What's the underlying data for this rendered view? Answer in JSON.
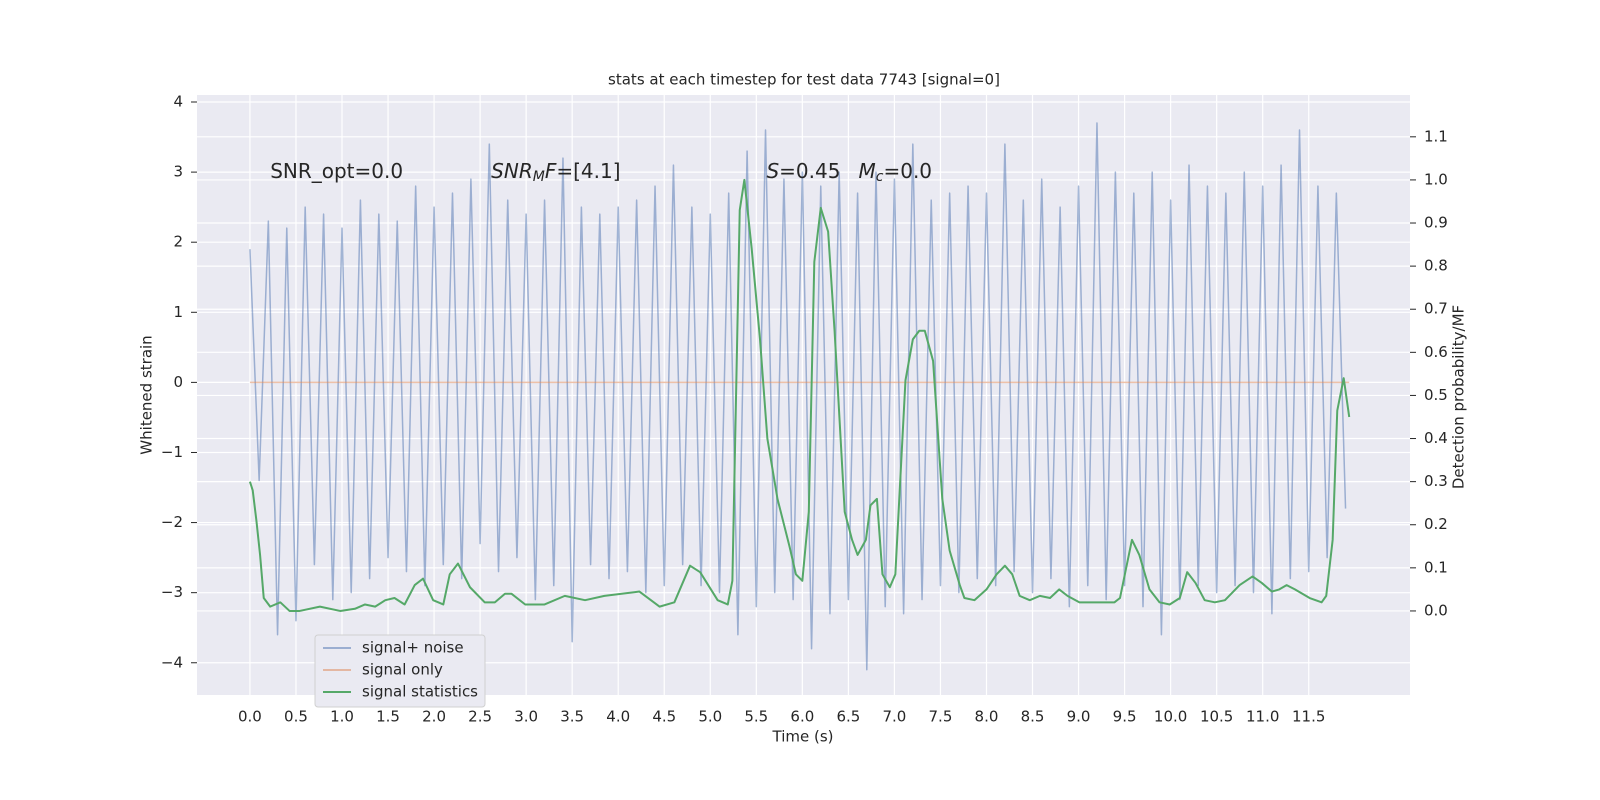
{
  "chart_data": {
    "type": "line",
    "title": "stats at each timestep for test data 7743 [signal=0]",
    "x_label": "Time (s)",
    "y_label": "Whitened strain",
    "y2_label": "Detection probability/MF",
    "grid": true,
    "legend": "lower left",
    "xlim": [
      -0.575,
      12.6
    ],
    "ylim": [
      -4.46,
      4.1
    ],
    "y2lim": [
      -0.195,
      1.197
    ],
    "xticks": [
      {
        "value": 0,
        "label": "0.0"
      },
      {
        "value": 0.5,
        "label": "0.5"
      },
      {
        "value": 1,
        "label": "1.0"
      },
      {
        "value": 1.5,
        "label": "1.5"
      },
      {
        "value": 2,
        "label": "2.0"
      },
      {
        "value": 2.5,
        "label": "2.5"
      },
      {
        "value": 3,
        "label": "3.0"
      },
      {
        "value": 3.5,
        "label": "3.5"
      },
      {
        "value": 4,
        "label": "4.0"
      },
      {
        "value": 4.5,
        "label": "4.5"
      },
      {
        "value": 5,
        "label": "5.0"
      },
      {
        "value": 5.5,
        "label": "5.5"
      },
      {
        "value": 6,
        "label": "6.0"
      },
      {
        "value": 6.5,
        "label": "6.5"
      },
      {
        "value": 7,
        "label": "7.0"
      },
      {
        "value": 7.5,
        "label": "7.5"
      },
      {
        "value": 8,
        "label": "8.0"
      },
      {
        "value": 8.5,
        "label": "8.5"
      },
      {
        "value": 9,
        "label": "9.0"
      },
      {
        "value": 9.5,
        "label": "9.5"
      },
      {
        "value": 10,
        "label": "10.0"
      },
      {
        "value": 10.5,
        "label": "10.5"
      },
      {
        "value": 11,
        "label": "11.0"
      },
      {
        "value": 11.5,
        "label": "11.5"
      }
    ],
    "yticks": [
      {
        "value": -4,
        "label": "−4"
      },
      {
        "value": -3,
        "label": "−3"
      },
      {
        "value": -2,
        "label": "−2"
      },
      {
        "value": -1,
        "label": "−1"
      },
      0,
      1,
      2,
      3,
      4
    ],
    "y2ticks": [
      {
        "value": 0,
        "label": "0.0"
      },
      {
        "value": 0.1,
        "label": "0.1"
      },
      {
        "value": 0.2,
        "label": "0.2"
      },
      {
        "value": 0.3,
        "label": "0.3"
      },
      {
        "value": 0.4,
        "label": "0.4"
      },
      {
        "value": 0.5,
        "label": "0.5"
      },
      {
        "value": 0.6,
        "label": "0.6"
      },
      {
        "value": 0.7,
        "label": "0.7"
      },
      {
        "value": 0.8,
        "label": "0.8"
      },
      {
        "value": 0.9,
        "label": "0.9"
      },
      {
        "value": 1,
        "label": "1.0"
      },
      {
        "value": 1.1,
        "label": "1.1"
      }
    ],
    "annotations": [
      {
        "x": 0.22,
        "y": 3,
        "parts": [
          {
            "t": "SNR_opt=0.0"
          }
        ]
      },
      {
        "x": 2.62,
        "y": 3,
        "parts": [
          {
            "t": "SNR",
            "italic": true
          },
          {
            "t": "M",
            "italic": true,
            "sub": true
          },
          {
            "t": "F",
            "italic": true
          },
          {
            "t": "=[4.1]"
          }
        ]
      },
      {
        "x": 5.61,
        "y": 3,
        "parts": [
          {
            "t": "S",
            "italic": true
          },
          {
            "t": "=0.45"
          }
        ]
      },
      {
        "x": 6.61,
        "y": 3,
        "parts": [
          {
            "t": "M",
            "italic": true
          },
          {
            "t": "c",
            "italic": true,
            "sub": true
          },
          {
            "t": "=0.0"
          }
        ]
      }
    ],
    "series": [
      {
        "name": "signal+ noise",
        "color": "#4c72b0",
        "opacity": 0.5,
        "x": [
          0.0,
          0.1,
          0.2,
          0.3,
          0.4,
          0.5,
          0.6,
          0.7,
          0.8,
          0.9,
          1.0,
          1.1,
          1.2,
          1.3,
          1.4,
          1.5,
          1.6,
          1.7,
          1.8,
          1.9,
          2.0,
          2.1,
          2.2,
          2.3,
          2.4,
          2.5,
          2.6,
          2.7,
          2.8,
          2.9,
          3.0,
          3.1,
          3.2,
          3.3,
          3.4,
          3.5,
          3.6,
          3.7,
          3.8,
          3.9,
          4.0,
          4.1,
          4.2,
          4.3,
          4.4,
          4.5,
          4.6,
          4.7,
          4.8,
          4.9,
          5.0,
          5.1,
          5.2,
          5.3,
          5.4,
          5.5,
          5.6,
          5.7,
          5.8,
          5.9,
          6.0,
          6.1,
          6.2,
          6.3,
          6.4,
          6.5,
          6.6,
          6.7,
          6.8,
          6.9,
          7.0,
          7.1,
          7.2,
          7.3,
          7.4,
          7.5,
          7.6,
          7.7,
          7.8,
          7.9,
          8.0,
          8.1,
          8.2,
          8.3,
          8.4,
          8.5,
          8.6,
          8.7,
          8.8,
          8.9,
          9.0,
          9.1,
          9.2,
          9.3,
          9.4,
          9.5,
          9.6,
          9.7,
          9.8,
          9.9,
          10.0,
          10.1,
          10.2,
          10.3,
          10.4,
          10.5,
          10.6,
          10.7,
          10.8,
          10.9,
          11.0,
          11.1,
          11.2,
          11.3,
          11.4,
          11.5,
          11.6,
          11.7,
          11.8,
          11.9
        ],
        "values": [
          1.9,
          -1.4,
          2.3,
          -3.6,
          2.2,
          -3.4,
          2.5,
          -2.6,
          2.4,
          -3.1,
          2.2,
          -3.0,
          2.6,
          -2.8,
          2.4,
          -2.5,
          2.3,
          -2.7,
          2.8,
          -2.9,
          2.5,
          -2.6,
          2.7,
          -2.8,
          2.9,
          -2.3,
          3.4,
          -2.7,
          2.6,
          -2.5,
          2.4,
          -3.1,
          2.6,
          -2.9,
          3.2,
          -3.7,
          2.5,
          -2.6,
          2.4,
          -2.8,
          2.5,
          -2.7,
          2.6,
          -3.0,
          2.8,
          -2.9,
          3.1,
          -2.6,
          2.5,
          -2.9,
          2.4,
          -3.0,
          2.7,
          -3.6,
          3.3,
          -3.2,
          3.6,
          -3.0,
          2.9,
          -3.1,
          3.0,
          -3.8,
          2.8,
          -3.3,
          3.0,
          -3.1,
          2.7,
          -4.1,
          3.0,
          -3.2,
          2.9,
          -3.3,
          3.4,
          -3.1,
          2.6,
          -2.9,
          2.7,
          -3.0,
          2.8,
          -2.8,
          2.7,
          -2.9,
          3.4,
          -2.7,
          2.6,
          -3.0,
          2.9,
          -2.8,
          2.5,
          -3.2,
          2.8,
          -2.9,
          3.7,
          -3.1,
          3.0,
          -2.9,
          2.7,
          -3.2,
          3.0,
          -3.6,
          2.6,
          -3.1,
          3.1,
          -2.9,
          2.8,
          -3.0,
          2.7,
          -2.9,
          3.0,
          -3.0,
          2.8,
          -3.3,
          3.1,
          -2.8,
          3.6,
          -2.7,
          2.8,
          -2.5,
          2.7,
          -1.8
        ]
      },
      {
        "name": "signal only",
        "color": "#dd8452",
        "opacity": 0.5,
        "x": [
          0.0,
          11.94
        ],
        "values": [
          0,
          0
        ]
      },
      {
        "name": "signal statistics",
        "color": "#55a868",
        "opacity": 1,
        "axis": "y2",
        "x": [
          0,
          0.03,
          0.07,
          0.11,
          0.15,
          0.22,
          0.33,
          0.43,
          0.54,
          0.76,
          0.98,
          1.14,
          1.25,
          1.36,
          1.47,
          1.57,
          1.68,
          1.79,
          1.88,
          1.99,
          2.1,
          2.17,
          2.26,
          2.39,
          2.55,
          2.66,
          2.77,
          2.84,
          2.99,
          3.2,
          3.42,
          3.64,
          3.85,
          4.23,
          4.45,
          4.61,
          4.78,
          4.89,
          5.08,
          5.19,
          5.24,
          5.32,
          5.37,
          5.45,
          5.54,
          5.62,
          5.73,
          5.86,
          5.93,
          6.0,
          6.07,
          6.13,
          6.2,
          6.28,
          6.35,
          6.46,
          6.54,
          6.6,
          6.69,
          6.74,
          6.81,
          6.87,
          6.95,
          7.01,
          7.12,
          7.2,
          7.27,
          7.33,
          7.42,
          7.52,
          7.6,
          7.71,
          7.76,
          7.87,
          8.0,
          8.11,
          8.2,
          8.28,
          8.36,
          8.47,
          8.58,
          8.69,
          8.79,
          8.88,
          9.01,
          9.23,
          9.39,
          9.45,
          9.58,
          9.66,
          9.77,
          9.88,
          9.99,
          10.1,
          10.18,
          10.27,
          10.37,
          10.48,
          10.59,
          10.75,
          10.89,
          10.99,
          11.1,
          11.18,
          11.26,
          11.35,
          11.51,
          11.64,
          11.69,
          11.76,
          11.81,
          11.88,
          11.94
        ],
        "values": [
          0.3,
          0.28,
          0.21,
          0.13,
          0.03,
          0.01,
          0.02,
          0.0,
          0.0,
          0.01,
          0.0,
          0.005,
          0.015,
          0.01,
          0.025,
          0.03,
          0.015,
          0.06,
          0.075,
          0.025,
          0.015,
          0.085,
          0.11,
          0.055,
          0.02,
          0.02,
          0.04,
          0.04,
          0.015,
          0.015,
          0.035,
          0.025,
          0.035,
          0.045,
          0.01,
          0.02,
          0.105,
          0.09,
          0.025,
          0.015,
          0.07,
          0.93,
          1.0,
          0.84,
          0.63,
          0.4,
          0.26,
          0.15,
          0.085,
          0.07,
          0.23,
          0.81,
          0.935,
          0.88,
          0.65,
          0.23,
          0.165,
          0.13,
          0.165,
          0.245,
          0.26,
          0.085,
          0.055,
          0.085,
          0.535,
          0.63,
          0.65,
          0.65,
          0.58,
          0.26,
          0.14,
          0.06,
          0.03,
          0.025,
          0.05,
          0.085,
          0.105,
          0.085,
          0.035,
          0.025,
          0.035,
          0.03,
          0.05,
          0.035,
          0.02,
          0.02,
          0.02,
          0.03,
          0.165,
          0.13,
          0.05,
          0.02,
          0.015,
          0.03,
          0.09,
          0.065,
          0.025,
          0.02,
          0.025,
          0.06,
          0.08,
          0.065,
          0.045,
          0.05,
          0.06,
          0.05,
          0.03,
          0.02,
          0.035,
          0.165,
          0.465,
          0.54,
          0.45
        ]
      }
    ]
  }
}
